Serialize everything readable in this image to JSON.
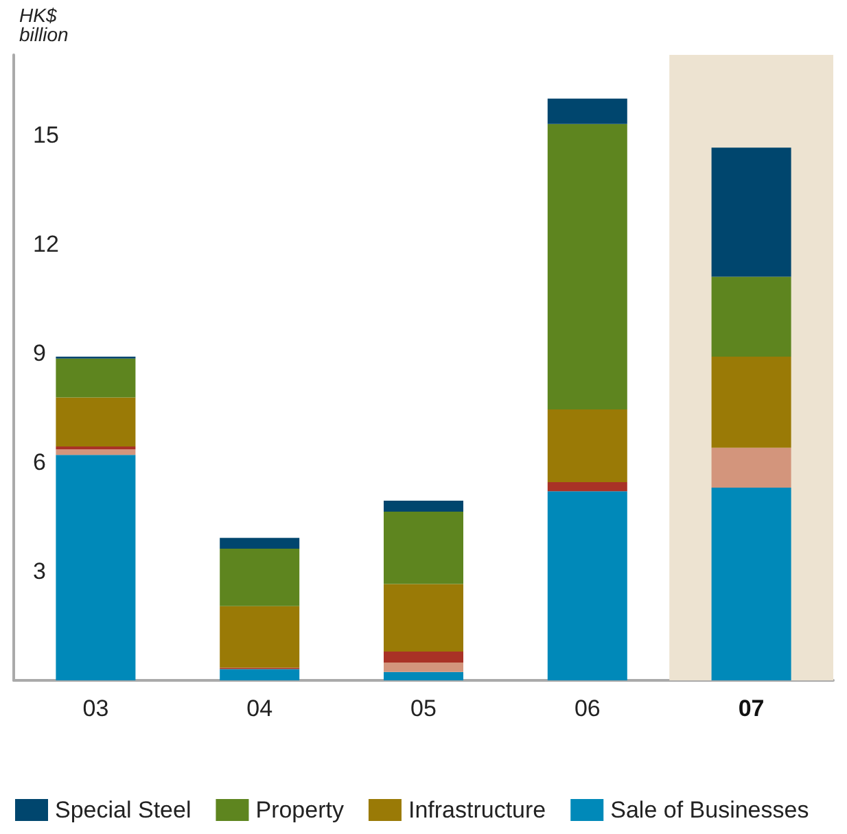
{
  "chart_data": {
    "type": "bar",
    "stacked": true,
    "ylabel": "HK$ billion",
    "categories": [
      "03",
      "04",
      "05",
      "06",
      "07"
    ],
    "series": [
      {
        "name": "Sale of Businesses",
        "color": "#0089b9",
        "values": [
          6.2,
          0.31,
          0.23,
          5.2,
          5.3
        ]
      },
      {
        "color": "#d3957c",
        "values": [
          0.15,
          0,
          0.26,
          0,
          1.1
        ]
      },
      {
        "color": "#a93226",
        "values": [
          0.08,
          0.04,
          0.3,
          0.25,
          0
        ]
      },
      {
        "name": "Infrastructure",
        "color": "#9a7a06",
        "values": [
          1.35,
          1.69,
          1.86,
          2.0,
          2.5
        ]
      },
      {
        "name": "Property",
        "color": "#5e851f",
        "values": [
          1.07,
          1.58,
          1.99,
          7.85,
          2.2
        ]
      },
      {
        "name": "Special Steel",
        "color": "#00466e",
        "values": [
          0.05,
          0.3,
          0.3,
          0.7,
          3.55
        ]
      }
    ],
    "bands": [
      {
        "axis": "x",
        "from": "07",
        "to": "07",
        "color": "#ede3d1"
      }
    ],
    "ylim": [
      0,
      17.2
    ],
    "yticks": [
      3,
      6,
      9,
      12,
      15
    ],
    "grid": false,
    "legend": "bottom"
  }
}
